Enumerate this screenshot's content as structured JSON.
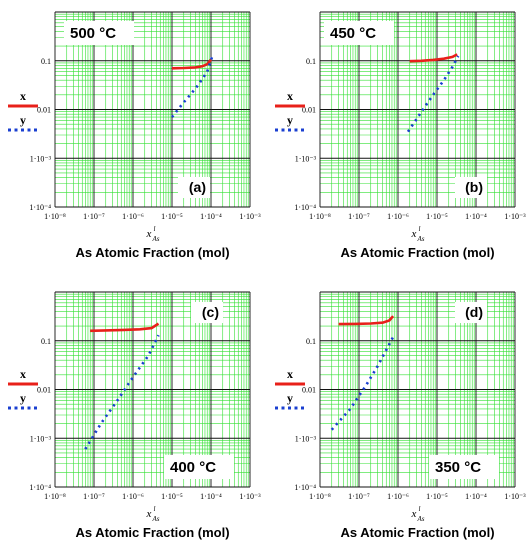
{
  "chart_data": [
    {
      "type": "line",
      "panel_label": "(a)",
      "temperature_label": "500 °C",
      "xlabel": "As Atomic Fraction (mol)",
      "x_symbol": "x",
      "x_symbol_sup": "l",
      "x_symbol_sub": "As",
      "xscale": "log",
      "yscale": "log",
      "xlim": [
        1e-08,
        0.001
      ],
      "ylim": [
        0.0001,
        1
      ],
      "xtick_labels": [
        "1·10⁻⁸",
        "1·10⁻⁷",
        "1·10⁻⁶",
        "1·10⁻⁵",
        "1·10⁻⁴",
        "1·10⁻³"
      ],
      "ytick_labels": [
        "0.1",
        "0.01",
        "1·10⁻³",
        "1·10⁻⁴"
      ],
      "legend": [
        {
          "name": "x",
          "color": "#e8201a",
          "style": "solid"
        },
        {
          "name": "y",
          "color": "#1a3fd0",
          "style": "dotted"
        }
      ],
      "series": [
        {
          "name": "x",
          "color": "#e8201a",
          "style": "solid",
          "x": [
            1e-05,
            2e-05,
            4e-05,
            6e-05,
            8e-05,
            0.0001
          ],
          "y": [
            0.07,
            0.071,
            0.073,
            0.077,
            0.085,
            0.105
          ]
        },
        {
          "name": "y",
          "color": "#1a3fd0",
          "style": "dotted",
          "x": [
            1e-05,
            2e-05,
            4e-05,
            6e-05,
            8e-05,
            0.00011
          ],
          "y": [
            0.007,
            0.014,
            0.027,
            0.042,
            0.06,
            0.13
          ]
        }
      ]
    },
    {
      "type": "line",
      "panel_label": "(b)",
      "temperature_label": "450 °C",
      "xlabel": "As Atomic Fraction (mol)",
      "x_symbol": "x",
      "x_symbol_sup": "l",
      "x_symbol_sub": "As",
      "xscale": "log",
      "yscale": "log",
      "xlim": [
        1e-08,
        0.001
      ],
      "ylim": [
        0.0001,
        1
      ],
      "xtick_labels": [
        "1·10⁻⁸",
        "1·10⁻⁷",
        "1·10⁻⁶",
        "1·10⁻⁵",
        "1·10⁻⁴",
        "1·10⁻³"
      ],
      "ytick_labels": [
        "0.1",
        "0.01",
        "1·10⁻³",
        "1·10⁻⁴"
      ],
      "legend": [
        {
          "name": "x",
          "color": "#e8201a",
          "style": "solid"
        },
        {
          "name": "y",
          "color": "#1a3fd0",
          "style": "dotted"
        }
      ],
      "series": [
        {
          "name": "x",
          "color": "#e8201a",
          "style": "solid",
          "x": [
            2e-06,
            4e-06,
            8e-06,
            1.5e-05,
            2.5e-05,
            3.3e-05
          ],
          "y": [
            0.098,
            0.1,
            0.104,
            0.11,
            0.12,
            0.135
          ]
        },
        {
          "name": "y",
          "color": "#1a3fd0",
          "style": "dotted",
          "x": [
            1.8e-06,
            4e-06,
            8e-06,
            1.5e-05,
            2.5e-05,
            3.5e-05
          ],
          "y": [
            0.0035,
            0.009,
            0.02,
            0.04,
            0.075,
            0.125
          ]
        }
      ]
    },
    {
      "type": "line",
      "panel_label": "(c)",
      "temperature_label": "400 °C",
      "xlabel": "As Atomic Fraction (mol)",
      "x_symbol": "x",
      "x_symbol_sup": "l",
      "x_symbol_sub": "As",
      "xscale": "log",
      "yscale": "log",
      "xlim": [
        1e-08,
        0.001
      ],
      "ylim": [
        0.0001,
        1
      ],
      "xtick_labels": [
        "1·10⁻⁸",
        "1·10⁻⁷",
        "1·10⁻⁶",
        "1·10⁻⁵",
        "1·10⁻⁴",
        "1·10⁻³"
      ],
      "ytick_labels": [
        "0.1",
        "0.01",
        "1·10⁻³",
        "1·10⁻⁴"
      ],
      "legend": [
        {
          "name": "x",
          "color": "#e8201a",
          "style": "solid"
        },
        {
          "name": "y",
          "color": "#1a3fd0",
          "style": "dotted"
        }
      ],
      "series": [
        {
          "name": "x",
          "color": "#e8201a",
          "style": "solid",
          "x": [
            8e-08,
            2e-07,
            6e-07,
            1.5e-06,
            3e-06,
            4.5e-06
          ],
          "y": [
            0.16,
            0.163,
            0.167,
            0.172,
            0.182,
            0.225
          ]
        },
        {
          "name": "y",
          "color": "#1a3fd0",
          "style": "dotted",
          "x": [
            6e-08,
            1.5e-07,
            4e-07,
            1e-06,
            2.5e-06,
            4.5e-06
          ],
          "y": [
            0.0006,
            0.002,
            0.006,
            0.018,
            0.05,
            0.13
          ]
        }
      ]
    },
    {
      "type": "line",
      "panel_label": "(d)",
      "temperature_label": "350 °C",
      "xlabel": "As Atomic Fraction (mol)",
      "x_symbol": "x",
      "x_symbol_sup": "l",
      "x_symbol_sub": "As",
      "xscale": "log",
      "yscale": "log",
      "xlim": [
        1e-08,
        0.001
      ],
      "ylim": [
        0.0001,
        1
      ],
      "xtick_labels": [
        "1·10⁻⁸",
        "1·10⁻⁷",
        "1·10⁻⁶",
        "1·10⁻⁵",
        "1·10⁻⁴",
        "1·10⁻³"
      ],
      "ytick_labels": [
        "0.1",
        "0.01",
        "1·10⁻³",
        "1·10⁻⁴"
      ],
      "legend": [
        {
          "name": "x",
          "color": "#e8201a",
          "style": "solid"
        },
        {
          "name": "y",
          "color": "#1a3fd0",
          "style": "dotted"
        }
      ],
      "series": [
        {
          "name": "x",
          "color": "#e8201a",
          "style": "solid",
          "x": [
            3e-08,
            8e-08,
            2e-07,
            4e-07,
            6e-07,
            7.5e-07
          ],
          "y": [
            0.22,
            0.222,
            0.226,
            0.235,
            0.26,
            0.32
          ]
        },
        {
          "name": "y",
          "color": "#1a3fd0",
          "style": "dotted",
          "x": [
            2e-08,
            6e-08,
            1.5e-07,
            3e-07,
            5e-07,
            7.5e-07
          ],
          "y": [
            0.0015,
            0.004,
            0.012,
            0.03,
            0.065,
            0.12
          ]
        }
      ]
    }
  ],
  "colors": {
    "grid_minor": "#34e034",
    "grid_major": "#111111",
    "x_curve": "#e8201a",
    "y_curve": "#1a3fd0"
  }
}
